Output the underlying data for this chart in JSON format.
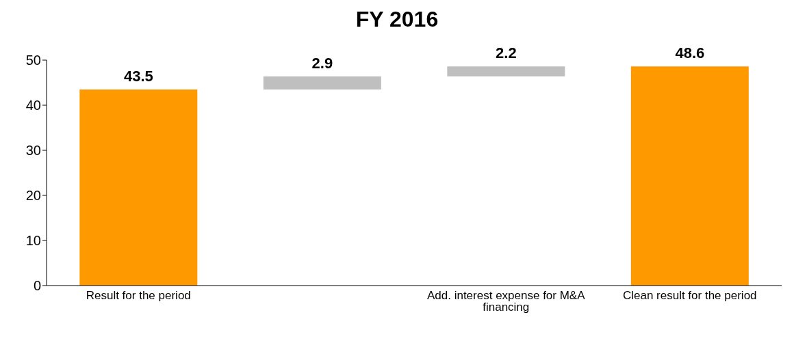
{
  "chart_data": {
    "type": "bar",
    "title": "FY 2016",
    "categories": [
      "Result for the period",
      null,
      "Add. interest expense for M&A financing",
      "Clean result for the period"
    ],
    "values": [
      43.5,
      2.9,
      2.2,
      48.6
    ],
    "base": [
      0,
      43.5,
      46.4,
      0
    ],
    "colors": [
      "#ff9900",
      "#bfbfbf",
      "#bfbfbf",
      "#ff9900"
    ],
    "ylim": [
      0,
      50
    ],
    "yticks": [
      0,
      10,
      20,
      30,
      40,
      50
    ],
    "data_labels": true
  }
}
